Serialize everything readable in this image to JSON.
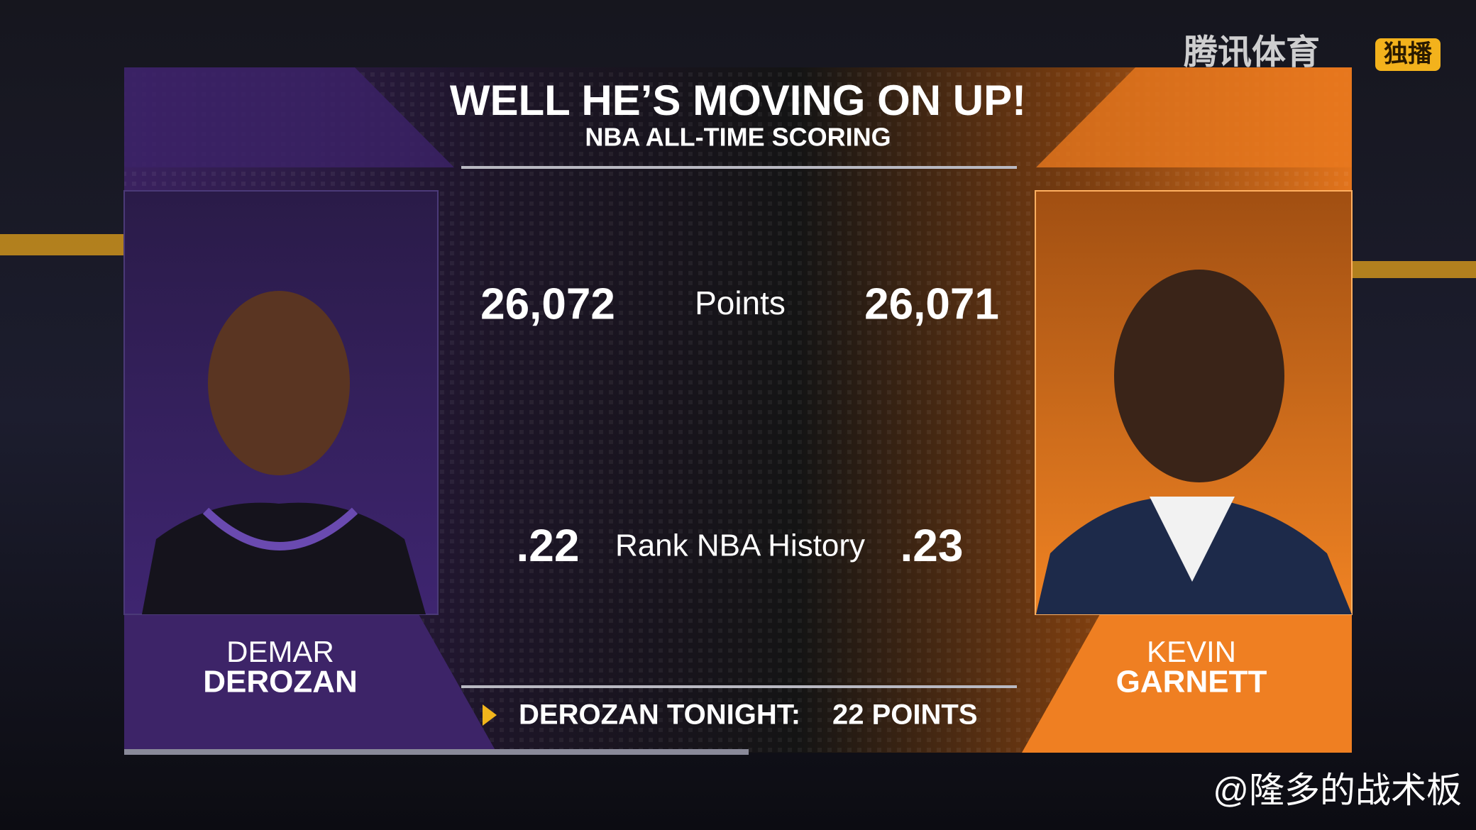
{
  "header": {
    "title": "WELL HE’S MOVING ON UP!",
    "subtitle": "NBA ALL-TIME SCORING"
  },
  "comparison": [
    {
      "label": "Points",
      "left": "26,072",
      "right": "26,071"
    },
    {
      "label": "Rank NBA History",
      "left": ".22",
      "right": ".23"
    }
  ],
  "players": {
    "left": {
      "first": "DEMAR",
      "last": "DEROZAN"
    },
    "right": {
      "first": "KEVIN",
      "last": "GARNETT"
    }
  },
  "footer": {
    "label": "DEROZAN TONIGHT:",
    "value": "22 POINTS"
  },
  "watermarks": {
    "broadcaster": "腾讯体育",
    "badge": "独播",
    "account": "@隆多的战术板"
  }
}
